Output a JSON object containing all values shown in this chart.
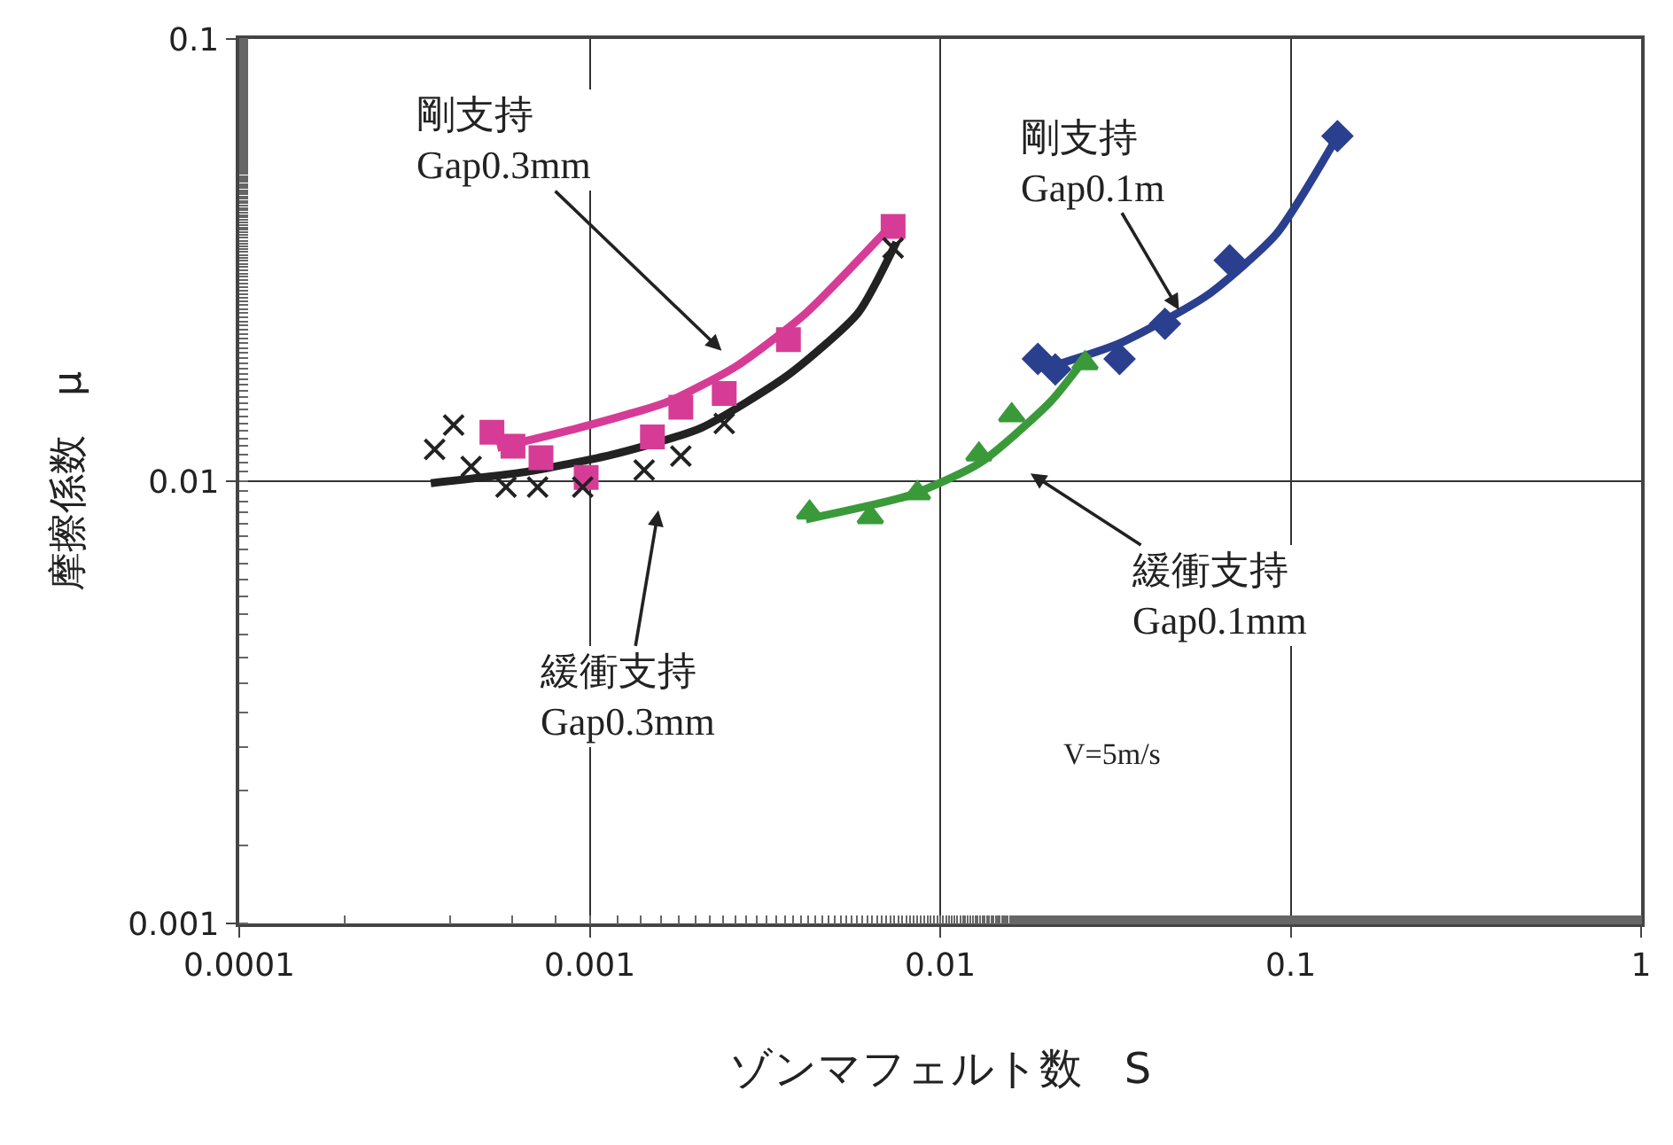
{
  "chart_data": {
    "type": "scatter",
    "xlabel": "ゾンマフェルト数　S",
    "ylabel": "摩擦係数　μ",
    "log": "xy",
    "grid": true,
    "xlim": [
      0.0001,
      1
    ],
    "ylim": [
      0.001,
      0.1
    ],
    "xticks": [
      0.0001,
      0.001,
      0.01,
      0.1,
      1
    ],
    "yticks": [
      0.001,
      0.01,
      0.1
    ],
    "series": [
      {
        "marker": "square",
        "color": "#d63c96",
        "x": [
          0.000526,
          0.000604,
          0.000726,
          0.000977,
          0.00151,
          0.00182,
          0.00242,
          0.00369,
          0.00734
        ],
        "values": [
          0.0129,
          0.012,
          0.0113,
          0.0102,
          0.0126,
          0.0147,
          0.0158,
          0.0209,
          0.0377
        ]
      },
      {
        "type": "line",
        "marker": "none",
        "color": "#d63c96",
        "x": [
          0.000545,
          0.00093,
          0.00166,
          0.00262,
          0.00414,
          0.0075
        ],
        "values": [
          0.0119,
          0.0132,
          0.0151,
          0.0182,
          0.024,
          0.039
        ]
      },
      {
        "marker": "cross",
        "color": "#222222",
        "x": [
          0.000361,
          0.000409,
          0.000459,
          0.000577,
          0.00071,
          0.000955,
          0.00143,
          0.00182,
          0.00242,
          0.00734
        ],
        "values": [
          0.0118,
          0.0134,
          0.0108,
          0.0097,
          0.0097,
          0.0097,
          0.0106,
          0.0114,
          0.0135,
          0.0337
        ]
      },
      {
        "type": "line",
        "marker": "none",
        "color": "#222222",
        "x": [
          0.000352,
          0.00066,
          0.00117,
          0.00208,
          0.00369,
          0.00583,
          0.0075
        ],
        "values": [
          0.0099,
          0.0105,
          0.0115,
          0.0132,
          0.0174,
          0.024,
          0.0347
        ]
      },
      {
        "marker": "diamond",
        "color": "#2b3f8f",
        "x": [
          0.019,
          0.0213,
          0.0325,
          0.0438,
          0.067,
          0.136
        ],
        "values": [
          0.0189,
          0.0179,
          0.0189,
          0.0227,
          0.0316,
          0.0603
        ]
      },
      {
        "type": "line",
        "marker": "none",
        "color": "#2b3f8f",
        "x": [
          0.0195,
          0.0325,
          0.0577,
          0.0912,
          0.139
        ],
        "values": [
          0.0179,
          0.0205,
          0.0263,
          0.0363,
          0.062
        ]
      },
      {
        "marker": "triangle",
        "color": "#3a9a3a",
        "x": [
          0.00424,
          0.00632,
          0.00861,
          0.0129,
          0.016,
          0.0259
        ],
        "values": [
          0.0085,
          0.0083,
          0.0094,
          0.0115,
          0.0141,
          0.0185
        ]
      },
      {
        "type": "line",
        "marker": "none",
        "color": "#3a9a3a",
        "x": [
          0.00414,
          0.0082,
          0.013,
          0.0206,
          0.0265
        ],
        "values": [
          0.0082,
          0.0093,
          0.011,
          0.0151,
          0.0194
        ]
      }
    ],
    "annotations": [
      "剛支持\nGap0.3mm",
      {
        "text": "剛支持\nGap0.1m",
        "x": 0.0486,
        "y": 0.024
      },
      "緩衝支持\nGap0.3mm",
      "緩衝支持\nGap0.1mm",
      "V=5m/s"
    ]
  }
}
